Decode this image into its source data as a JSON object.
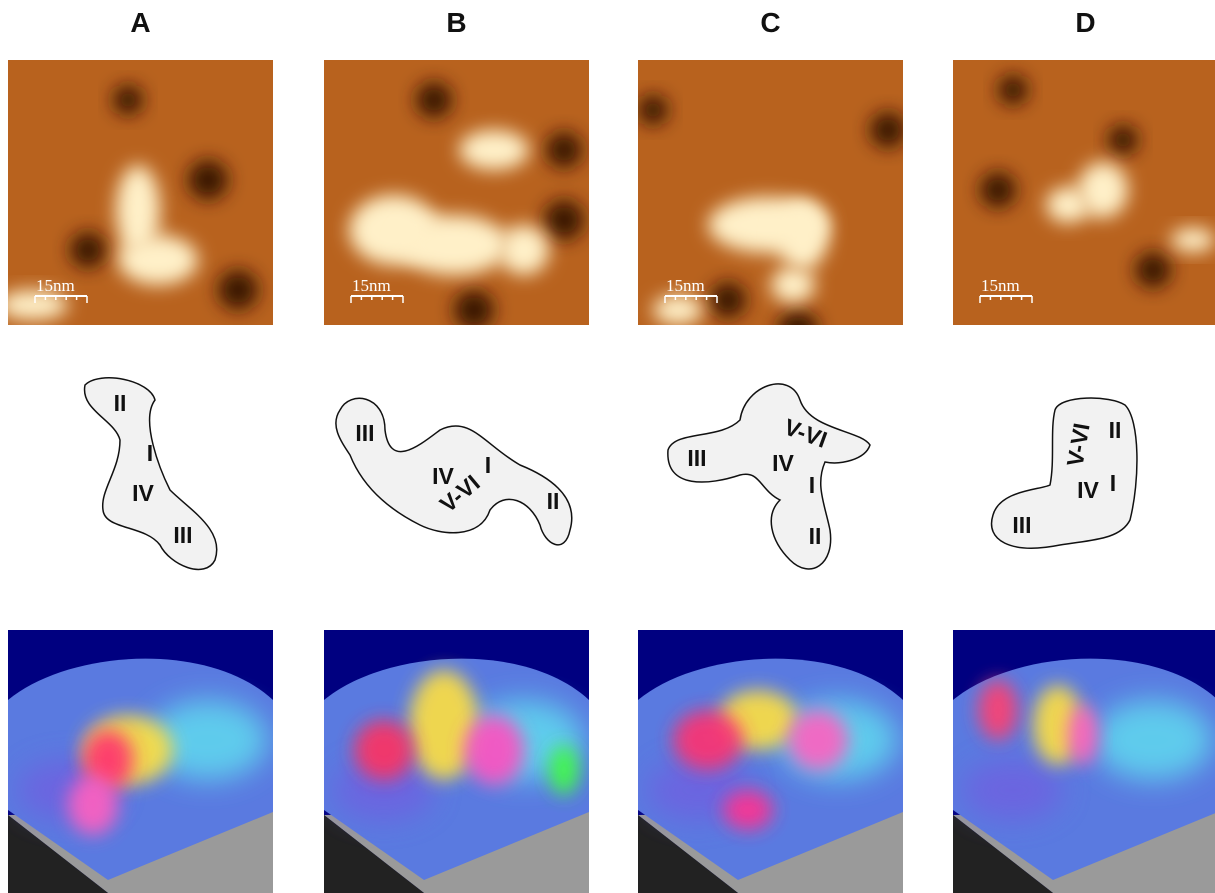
{
  "panels": [
    {
      "label": "A",
      "scale_bar": "15nm",
      "domains": [
        "II",
        "I",
        "IV",
        "III"
      ]
    },
    {
      "label": "B",
      "scale_bar": "15nm",
      "domains": [
        "III",
        "IV",
        "I",
        "V-VI",
        "II"
      ]
    },
    {
      "label": "C",
      "scale_bar": "15nm",
      "domains": [
        "III",
        "V-VI",
        "IV",
        "I",
        "II"
      ]
    },
    {
      "label": "D",
      "scale_bar": "15nm",
      "domains": [
        "V-VI",
        "II",
        "IV",
        "I",
        "III"
      ]
    }
  ]
}
